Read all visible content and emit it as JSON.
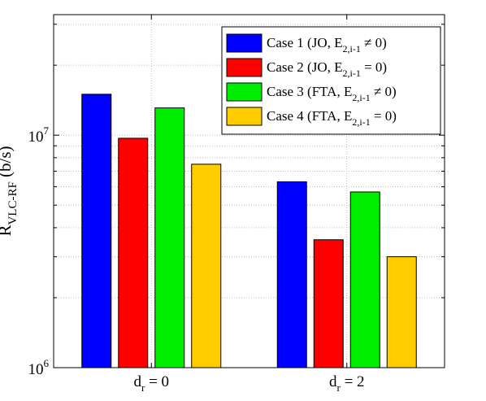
{
  "chart_data": {
    "type": "bar",
    "y_scale": "log",
    "ylim": [
      1000000,
      33000000
    ],
    "ytick_labels": [
      {
        "value": 1000000,
        "base": "10",
        "exp": "6"
      },
      {
        "value": 10000000,
        "base": "10",
        "exp": "7"
      }
    ],
    "ylabel": {
      "main": "R",
      "sub": "VLC-RF",
      "rest": " (b/s)"
    },
    "grid": true,
    "legend_position": "top-right",
    "categories": [
      {
        "main": "d",
        "sub": "r",
        "rest": " = 0"
      },
      {
        "main": "d",
        "sub": "r",
        "rest": " = 2"
      }
    ],
    "series": [
      {
        "name": {
          "a": "Case 1 (JO, E",
          "sub": "2,i-1",
          "b": " ≠ 0)"
        },
        "color": "#0000ff",
        "values": [
          15000000,
          6300000
        ]
      },
      {
        "name": {
          "a": "Case 2 (JO, E",
          "sub": "2,i-1",
          "b": " = 0)"
        },
        "color": "#ff0000",
        "values": [
          9700000,
          3550000
        ]
      },
      {
        "name": {
          "a": "Case 3 (FTA, E",
          "sub": "2,i-1",
          "b": " ≠ 0)"
        },
        "color": "#00ee00",
        "values": [
          13100000,
          5700000
        ]
      },
      {
        "name": {
          "a": "Case 4 (FTA, E",
          "sub": "2,i-1",
          "b": " = 0)"
        },
        "color": "#ffcc00",
        "values": [
          7500000,
          3000000
        ]
      }
    ]
  }
}
